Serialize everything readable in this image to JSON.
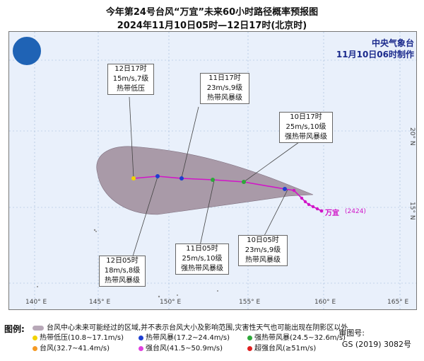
{
  "title_line1": "今年第24号台风“万宜”未来60小时路径概率预报图",
  "title_line2": "2024年11月10日05时—12日17时(北京时)",
  "agency": "中央气象台",
  "issued": "11月10日06时制作",
  "storm_name": "万宜",
  "storm_code": "(2424)",
  "longitudes": [
    "140° E",
    "145° E",
    "150° E",
    "155° E",
    "160° E",
    "165° E"
  ],
  "latitudes": [
    "15° N",
    "20° N"
  ],
  "callouts": [
    {
      "id": "c1",
      "time": "12日17时",
      "wind": "15m/s,7级",
      "cat": "热带低压"
    },
    {
      "id": "c2",
      "time": "11日17时",
      "wind": "23m/s,9级",
      "cat": "热带风暴级"
    },
    {
      "id": "c3",
      "time": "10日17时",
      "wind": "25m/s,10级",
      "cat": "强热带风暴级"
    },
    {
      "id": "c4",
      "time": "12日05时",
      "wind": "18m/s,8级",
      "cat": "热带风暴级"
    },
    {
      "id": "c5",
      "time": "11日05时",
      "wind": "25m/s,10级",
      "cat": "强热带风暴级"
    },
    {
      "id": "c6",
      "time": "10日05时",
      "wind": "23m/s,9级",
      "cat": "热带风暴级"
    }
  ],
  "legend": {
    "title": "图例:",
    "cone_text": "台风中心未来可能经过的区域,并不表示台风大小及影响范围,灾害性天气也可能出现在阴影区以外",
    "items": [
      {
        "label": "热带低压(10.8~17.1m/s)",
        "color": "#f2d200"
      },
      {
        "label": "热带风暴(17.2~24.4m/s)",
        "color": "#1f3fd1"
      },
      {
        "label": "强热带风暴(24.5~32.6m/s)",
        "color": "#2ea83a"
      },
      {
        "label": "台风(32.7~41.4m/s)",
        "color": "#f59a24"
      },
      {
        "label": "强台风(41.5~50.9m/s)",
        "color": "#e040e0"
      },
      {
        "label": "超强台风(≥51m/s)",
        "color": "#e02020"
      }
    ]
  },
  "review_label": "审图号:",
  "review_number": "GS (2019) 3082号",
  "colors": {
    "track": "#d116c8",
    "cone": "#a99aa8",
    "sea": "#e9f0fb",
    "border": "#777777"
  }
}
